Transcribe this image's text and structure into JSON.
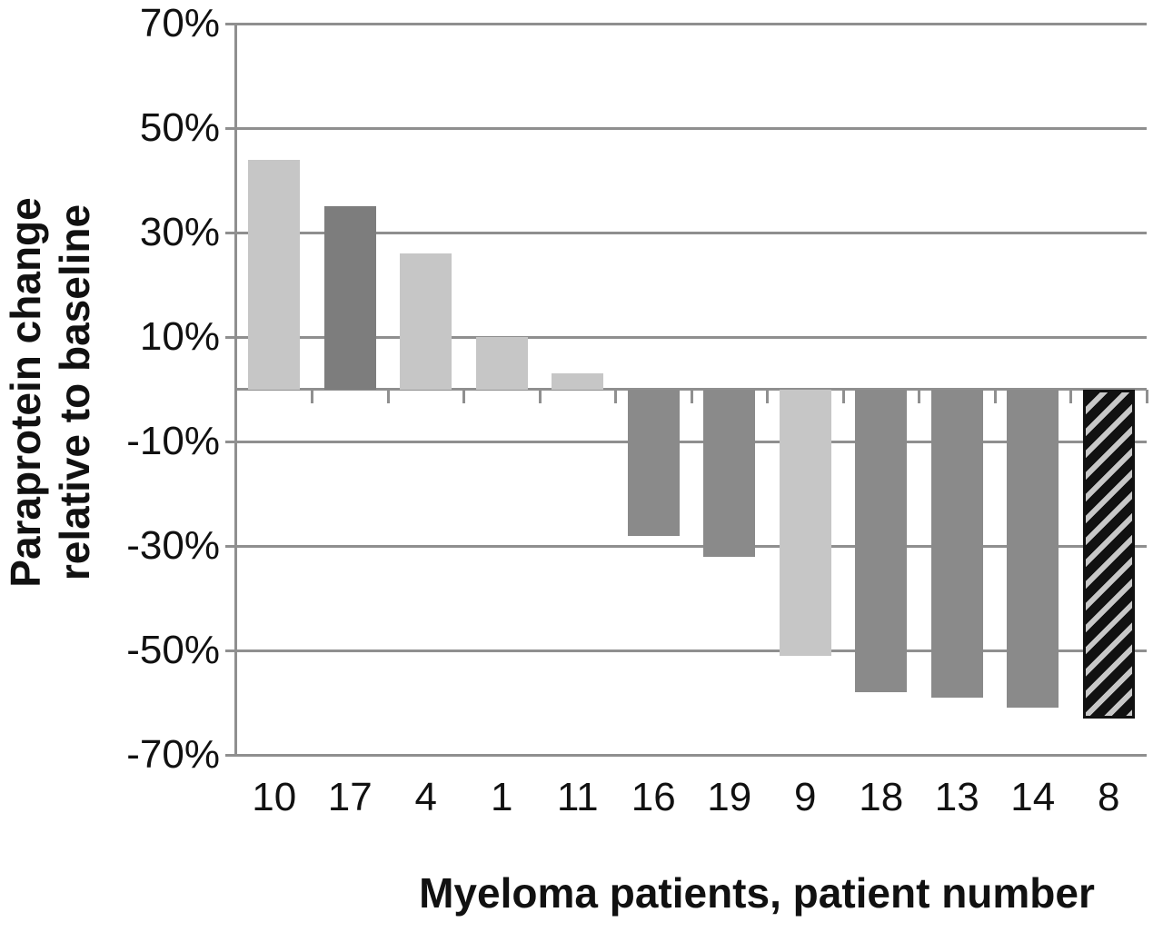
{
  "chart_data": {
    "type": "bar",
    "title": "",
    "xlabel": "Myeloma patients, patient number",
    "ylabel": "Paraprotein change relative to baseline",
    "ylabel_line1": "Paraprotein change",
    "ylabel_line2": "relative to baseline",
    "categories": [
      "10",
      "17",
      "4",
      "1",
      "11",
      "16",
      "19",
      "9",
      "18",
      "13",
      "14",
      "8"
    ],
    "values": [
      44,
      35,
      26,
      10,
      3,
      -28,
      -32,
      -51,
      -58,
      -59,
      -61,
      -63
    ],
    "bar_styles": [
      "light",
      "dark",
      "light",
      "light",
      "light",
      "medium",
      "medium",
      "light",
      "medium",
      "medium",
      "medium",
      "hatched"
    ],
    "ylim": [
      -70,
      70
    ],
    "ytick_step": 20,
    "yticks": [
      70,
      50,
      30,
      10,
      -10,
      -30,
      -50,
      -70
    ],
    "ytick_labels": [
      "70%",
      "50%",
      "30%",
      "10%",
      "-10%",
      "-30%",
      "-50%",
      "-70%"
    ],
    "grid": true,
    "legend": false,
    "colors": {
      "light": "#c6c6c6",
      "dark": "#7d7d7d",
      "medium": "#8a8a8a",
      "hatch_dark": "#111111",
      "hatch_light": "#c8c8c8",
      "gridline": "#8f8f8f",
      "text": "#111111"
    }
  }
}
